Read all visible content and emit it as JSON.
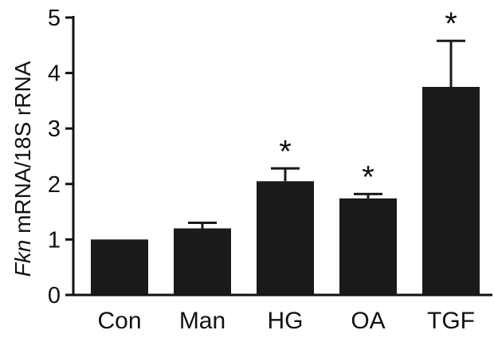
{
  "chart_data": {
    "type": "bar",
    "title": "",
    "xlabel": "",
    "ylabel": {
      "italic_part": "Fkn",
      "rest": " mRNA/18S rRNA"
    },
    "categories": [
      "Con",
      "Man",
      "HG",
      "OA",
      "TGF"
    ],
    "values": [
      1.0,
      1.2,
      2.05,
      1.74,
      3.75
    ],
    "errors": [
      0.0,
      0.1,
      0.23,
      0.08,
      0.83
    ],
    "significance": [
      "",
      "",
      "*",
      "*",
      "*"
    ],
    "ylim": [
      0,
      5
    ],
    "yticks": [
      "0",
      "1",
      "2",
      "3",
      "4",
      "5"
    ],
    "grid": false,
    "legend": "none",
    "bar_color": "#1a1a1a"
  }
}
